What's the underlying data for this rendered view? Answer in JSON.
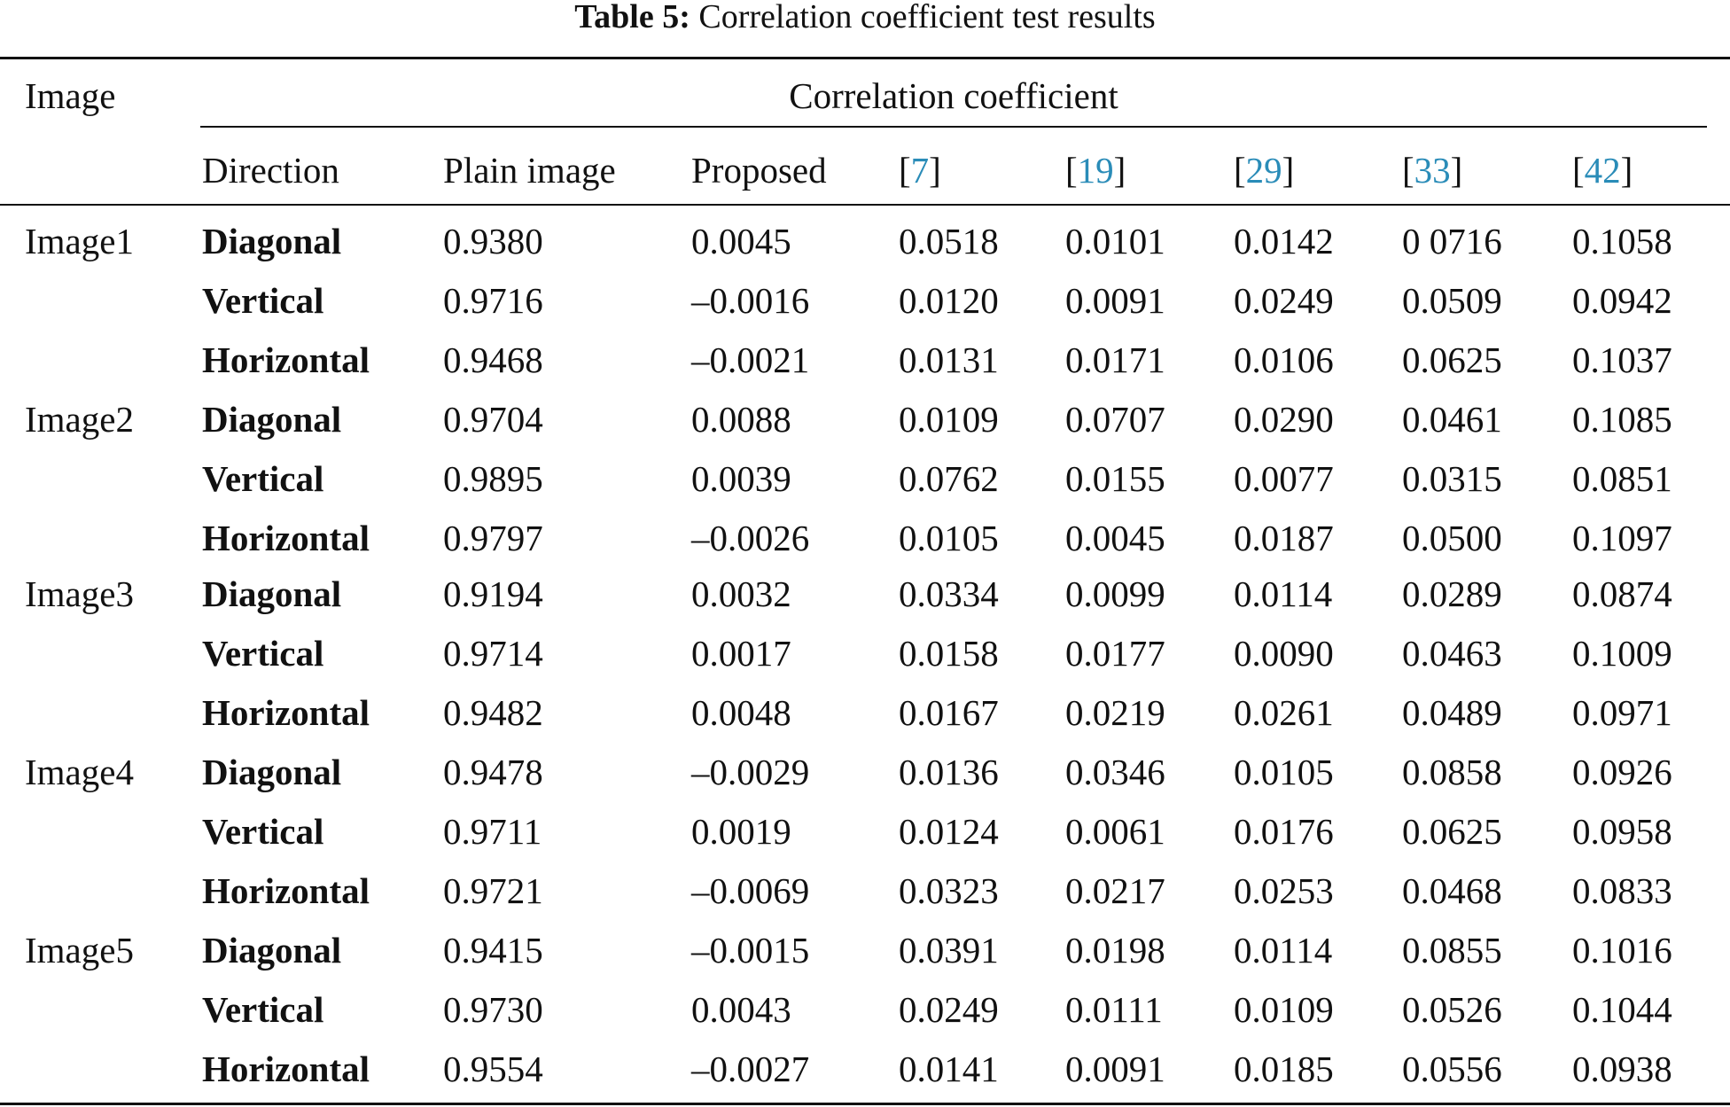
{
  "caption": {
    "label": "Table 5:",
    "text": "Correlation coefficient test results"
  },
  "header": {
    "image": "Image",
    "group": "Correlation coefficient",
    "direction": "Direction",
    "plain": "Plain image",
    "proposed": "Proposed",
    "refs": [
      "7",
      "19",
      "29",
      "33",
      "42"
    ]
  },
  "rows": [
    {
      "image": "Image1",
      "direction": "Diagonal",
      "plain": "0.9380",
      "proposed": "0.0045",
      "r7": "0.0518",
      "r19": "0.0101",
      "r29": "0.0142",
      "r33": "0 0716",
      "r42": "0.1058"
    },
    {
      "image": "",
      "direction": "Vertical",
      "plain": "0.9716",
      "proposed": "–0.0016",
      "r7": "0.0120",
      "r19": "0.0091",
      "r29": "0.0249",
      "r33": "0.0509",
      "r42": "0.0942"
    },
    {
      "image": "",
      "direction": "Horizontal",
      "plain": "0.9468",
      "proposed": "–0.0021",
      "r7": "0.0131",
      "r19": "0.0171",
      "r29": "0.0106",
      "r33": "0.0625",
      "r42": "0.1037"
    },
    {
      "image": "Image2",
      "direction": "Diagonal",
      "plain": "0.9704",
      "proposed": "0.0088",
      "r7": "0.0109",
      "r19": "0.0707",
      "r29": "0.0290",
      "r33": "0.0461",
      "r42": "0.1085"
    },
    {
      "image": "",
      "direction": "Vertical",
      "plain": "0.9895",
      "proposed": "0.0039",
      "r7": "0.0762",
      "r19": "0.0155",
      "r29": "0.0077",
      "r33": "0.0315",
      "r42": "0.0851"
    },
    {
      "image": "",
      "direction": "Horizontal",
      "plain": "0.9797",
      "proposed": "–0.0026",
      "r7": "0.0105",
      "r19": "0.0045",
      "r29": "0.0187",
      "r33": "0.0500",
      "r42": "0.1097"
    },
    {
      "image": "Image3",
      "direction": "Diagonal",
      "plain": "0.9194",
      "proposed": "0.0032",
      "r7": "0.0334",
      "r19": "0.0099",
      "r29": "0.0114",
      "r33": "0.0289",
      "r42": "0.0874"
    },
    {
      "image": "",
      "direction": "Vertical",
      "plain": "0.9714",
      "proposed": "0.0017",
      "r7": "0.0158",
      "r19": "0.0177",
      "r29": "0.0090",
      "r33": "0.0463",
      "r42": "0.1009"
    },
    {
      "image": "",
      "direction": "Horizontal",
      "plain": "0.9482",
      "proposed": "0.0048",
      "r7": "0.0167",
      "r19": "0.0219",
      "r29": "0.0261",
      "r33": "0.0489",
      "r42": "0.0971"
    },
    {
      "image": "Image4",
      "direction": "Diagonal",
      "plain": "0.9478",
      "proposed": "–0.0029",
      "r7": "0.0136",
      "r19": "0.0346",
      "r29": "0.0105",
      "r33": "0.0858",
      "r42": "0.0926"
    },
    {
      "image": "",
      "direction": "Vertical",
      "plain": "0.9711",
      "proposed": "0.0019",
      "r7": "0.0124",
      "r19": "0.0061",
      "r29": "0.0176",
      "r33": "0.0625",
      "r42": "0.0958"
    },
    {
      "image": "",
      "direction": "Horizontal",
      "plain": "0.9721",
      "proposed": "–0.0069",
      "r7": "0.0323",
      "r19": "0.0217",
      "r29": "0.0253",
      "r33": "0.0468",
      "r42": "0.0833"
    },
    {
      "image": "Image5",
      "direction": "Diagonal",
      "plain": "0.9415",
      "proposed": "–0.0015",
      "r7": "0.0391",
      "r19": "0.0198",
      "r29": "0.0114",
      "r33": "0.0855",
      "r42": "0.1016"
    },
    {
      "image": "",
      "direction": "Vertical",
      "plain": "0.9730",
      "proposed": "0.0043",
      "r7": "0.0249",
      "r19": "0.0111",
      "r29": "0.0109",
      "r33": "0.0526",
      "r42": "0.1044"
    },
    {
      "image": "",
      "direction": "Horizontal",
      "plain": "0.9554",
      "proposed": "–0.0027",
      "r7": "0.0141",
      "r19": "0.0091",
      "r29": "0.0185",
      "r33": "0.0556",
      "r42": "0.0938"
    }
  ]
}
